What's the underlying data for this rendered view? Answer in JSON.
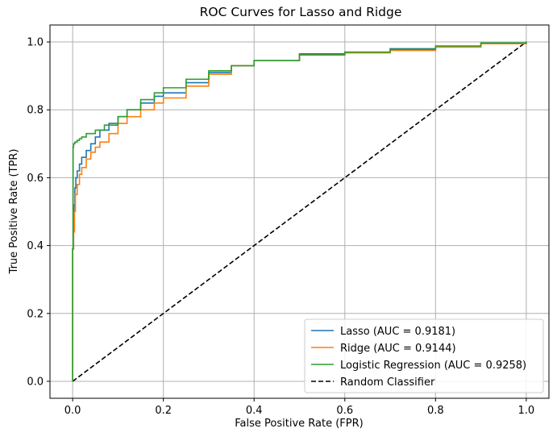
{
  "chart_data": {
    "type": "line",
    "title": "ROC Curves for Lasso and Ridge",
    "xlabel": "False Positive Rate (FPR)",
    "ylabel": "True Positive Rate (TPR)",
    "xlim": [
      -0.05,
      1.05
    ],
    "ylim": [
      -0.05,
      1.05
    ],
    "xticks": [
      0.0,
      0.2,
      0.4,
      0.6,
      0.8,
      1.0
    ],
    "yticks": [
      0.0,
      0.2,
      0.4,
      0.6,
      0.8,
      1.0
    ],
    "xtick_labels": [
      "0.0",
      "0.2",
      "0.4",
      "0.6",
      "0.8",
      "1.0"
    ],
    "ytick_labels": [
      "0.0",
      "0.2",
      "0.4",
      "0.6",
      "0.8",
      "1.0"
    ],
    "grid": true,
    "legend_position": "lower-right",
    "series": [
      {
        "name": "Lasso (AUC = 0.9181)",
        "color": "#1f77b4",
        "style": "solid",
        "x": [
          0,
          0,
          0.002,
          0.003,
          0.005,
          0.007,
          0.01,
          0.015,
          0.02,
          0.03,
          0.04,
          0.05,
          0.06,
          0.08,
          0.1,
          0.12,
          0.15,
          0.18,
          0.2,
          0.25,
          0.3,
          0.35,
          0.4,
          0.5,
          0.6,
          0.7,
          0.8,
          0.9,
          1.0
        ],
        "y": [
          0,
          0.39,
          0.46,
          0.52,
          0.57,
          0.6,
          0.62,
          0.64,
          0.66,
          0.68,
          0.7,
          0.72,
          0.74,
          0.76,
          0.78,
          0.8,
          0.82,
          0.84,
          0.85,
          0.88,
          0.91,
          0.93,
          0.945,
          0.965,
          0.97,
          0.98,
          0.985,
          0.995,
          1.0
        ]
      },
      {
        "name": "Ridge (AUC = 0.9144)",
        "color": "#ff7f0e",
        "style": "solid",
        "x": [
          0,
          0,
          0.002,
          0.004,
          0.006,
          0.01,
          0.015,
          0.02,
          0.03,
          0.04,
          0.05,
          0.06,
          0.08,
          0.1,
          0.12,
          0.15,
          0.18,
          0.2,
          0.25,
          0.3,
          0.35,
          0.4,
          0.5,
          0.6,
          0.7,
          0.8,
          0.9,
          1.0
        ],
        "y": [
          0,
          0.39,
          0.44,
          0.5,
          0.55,
          0.58,
          0.61,
          0.63,
          0.655,
          0.675,
          0.69,
          0.705,
          0.73,
          0.76,
          0.78,
          0.8,
          0.82,
          0.835,
          0.87,
          0.905,
          0.93,
          0.945,
          0.962,
          0.968,
          0.975,
          0.985,
          0.995,
          1.0
        ]
      },
      {
        "name": "Logistic Regression (AUC = 0.9258)",
        "color": "#2ca02c",
        "style": "solid",
        "x": [
          0,
          0,
          0.001,
          0.002,
          0.005,
          0.01,
          0.015,
          0.02,
          0.03,
          0.05,
          0.07,
          0.1,
          0.12,
          0.15,
          0.18,
          0.2,
          0.25,
          0.3,
          0.35,
          0.4,
          0.5,
          0.6,
          0.7,
          0.8,
          0.9,
          1.0
        ],
        "y": [
          0,
          0.39,
          0.69,
          0.7,
          0.705,
          0.71,
          0.715,
          0.72,
          0.73,
          0.74,
          0.755,
          0.78,
          0.8,
          0.83,
          0.85,
          0.865,
          0.89,
          0.915,
          0.93,
          0.945,
          0.962,
          0.97,
          0.978,
          0.988,
          0.997,
          1.0
        ]
      },
      {
        "name": "Random Classifier",
        "color": "#000000",
        "style": "dashed",
        "x": [
          0,
          1
        ],
        "y": [
          0,
          1
        ]
      }
    ]
  }
}
